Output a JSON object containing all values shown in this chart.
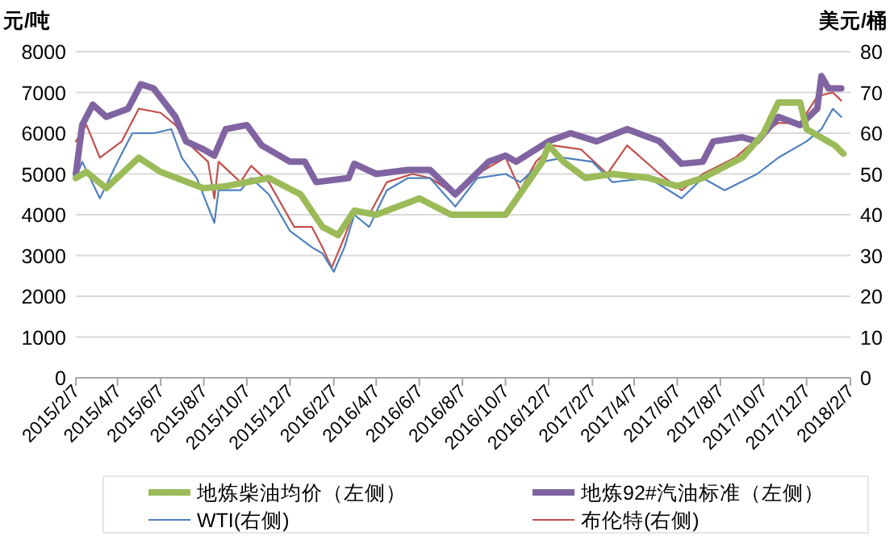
{
  "chart_data": {
    "type": "line",
    "ylabel": "元/吨",
    "y2label": "美元/桶",
    "xlim": [
      "2015-02-07",
      "2018-02-07"
    ],
    "xticks": [
      {
        "value": "2015-02-07",
        "label": "2015/2/7"
      },
      {
        "value": "2015-04-07",
        "label": "2015/4/7"
      },
      {
        "value": "2015-06-07",
        "label": "2015/6/7"
      },
      {
        "value": "2015-08-07",
        "label": "2015/8/7"
      },
      {
        "value": "2015-10-07",
        "label": "2015/10/7"
      },
      {
        "value": "2015-12-07",
        "label": "2015/12/7"
      },
      {
        "value": "2016-02-07",
        "label": "2016/2/7"
      },
      {
        "value": "2016-04-07",
        "label": "2016/4/7"
      },
      {
        "value": "2016-06-07",
        "label": "2016/6/7"
      },
      {
        "value": "2016-08-07",
        "label": "2016/8/7"
      },
      {
        "value": "2016-10-07",
        "label": "2016/10/7"
      },
      {
        "value": "2016-12-07",
        "label": "2016/12/7"
      },
      {
        "value": "2017-02-07",
        "label": "2017/2/7"
      },
      {
        "value": "2017-04-07",
        "label": "2017/4/7"
      },
      {
        "value": "2017-06-07",
        "label": "2017/6/7"
      },
      {
        "value": "2017-08-07",
        "label": "2017/8/7"
      },
      {
        "value": "2017-10-07",
        "label": "2017/10/7"
      },
      {
        "value": "2017-12-07",
        "label": "2017/12/7"
      },
      {
        "value": "2018-02-07",
        "label": "2018/2/7"
      }
    ],
    "ylim": [
      0,
      8000
    ],
    "yticks": [
      0,
      1000,
      2000,
      3000,
      4000,
      5000,
      6000,
      7000,
      8000
    ],
    "y2lim": [
      0,
      80
    ],
    "y2ticks": [
      0,
      10,
      20,
      30,
      40,
      50,
      60,
      70,
      80
    ],
    "grid": "y",
    "legend": "bottom",
    "series": [
      {
        "name": "地炼柴油均价（左侧）",
        "color": "#9bbb59",
        "x": [
          "2015-02-07",
          "2015-02-22",
          "2015-03-22",
          "2015-05-07",
          "2015-06-07",
          "2015-08-07",
          "2015-09-07",
          "2015-11-07",
          "2015-12-22",
          "2016-01-22",
          "2016-02-13",
          "2016-03-07",
          "2016-04-07",
          "2016-06-07",
          "2016-07-22",
          "2016-10-07",
          "2016-11-28",
          "2016-12-07",
          "2016-12-28",
          "2017-01-28",
          "2017-03-07",
          "2017-04-28",
          "2017-06-07",
          "2017-07-13",
          "2017-09-07",
          "2017-10-07",
          "2017-10-28",
          "2017-11-28",
          "2017-12-07",
          "2018-01-16",
          "2018-01-28"
        ],
        "values": [
          4900,
          5050,
          4650,
          5400,
          5050,
          4650,
          4700,
          4900,
          4500,
          3700,
          3500,
          4100,
          4000,
          4400,
          4000,
          4000,
          5300,
          5700,
          5300,
          4900,
          5000,
          4900,
          4700,
          4900,
          5400,
          6000,
          6750,
          6750,
          6100,
          5700,
          5500
        ]
      },
      {
        "name": "地炼92#汽油标准（左侧）",
        "color": "#8064a2",
        "x": [
          "2015-02-07",
          "2015-02-16",
          "2015-03-03",
          "2015-03-22",
          "2015-04-22",
          "2015-05-10",
          "2015-05-28",
          "2015-06-28",
          "2015-07-13",
          "2015-08-07",
          "2015-08-22",
          "2015-09-07",
          "2015-10-07",
          "2015-10-28",
          "2015-12-07",
          "2015-12-28",
          "2016-01-13",
          "2016-02-28",
          "2016-03-07",
          "2016-04-07",
          "2016-05-22",
          "2016-06-22",
          "2016-07-28",
          "2016-09-13",
          "2016-10-07",
          "2016-10-22",
          "2016-12-07",
          "2017-01-07",
          "2017-02-13",
          "2017-03-28",
          "2017-05-13",
          "2017-06-13",
          "2017-07-13",
          "2017-07-28",
          "2017-09-07",
          "2017-09-28",
          "2017-10-28",
          "2017-11-28",
          "2017-12-22",
          "2017-12-28",
          "2018-01-07",
          "2018-01-25"
        ],
        "values": [
          5000,
          6200,
          6700,
          6400,
          6600,
          7200,
          7100,
          6400,
          5800,
          5600,
          5450,
          6100,
          6200,
          5700,
          5300,
          5300,
          4800,
          4900,
          5250,
          5000,
          5100,
          5100,
          4500,
          5300,
          5450,
          5300,
          5800,
          6000,
          5800,
          6100,
          5800,
          5250,
          5300,
          5800,
          5900,
          5800,
          6400,
          6200,
          6600,
          7400,
          7100,
          7100
        ]
      },
      {
        "name": "WTI(右侧)",
        "color": "#4f81bd",
        "axis": "y2",
        "x": [
          "2015-02-07",
          "2015-02-16",
          "2015-03-13",
          "2015-04-07",
          "2015-04-28",
          "2015-05-28",
          "2015-06-22",
          "2015-07-07",
          "2015-07-28",
          "2015-08-22",
          "2015-08-28",
          "2015-09-28",
          "2015-10-13",
          "2015-11-07",
          "2015-12-07",
          "2016-01-07",
          "2016-01-22",
          "2016-02-07",
          "2016-02-22",
          "2016-03-07",
          "2016-03-28",
          "2016-04-22",
          "2016-05-22",
          "2016-06-22",
          "2016-07-28",
          "2016-08-28",
          "2016-10-07",
          "2016-10-28",
          "2016-11-28",
          "2016-12-28",
          "2017-02-07",
          "2017-03-07",
          "2017-04-28",
          "2017-06-13",
          "2017-07-13",
          "2017-08-13",
          "2017-09-28",
          "2017-10-28",
          "2017-12-07",
          "2017-12-28",
          "2018-01-13",
          "2018-01-25"
        ],
        "values": [
          49,
          53,
          44,
          53,
          60,
          60,
          61,
          54,
          49,
          38,
          46,
          46,
          49,
          45,
          36,
          32,
          30.5,
          26,
          32,
          40,
          37,
          46,
          49,
          49,
          42,
          49,
          50,
          48,
          53,
          54,
          53,
          48,
          49,
          44,
          49,
          46,
          50,
          54,
          58,
          61,
          66,
          64
        ]
      },
      {
        "name": "布伦特(右侧)",
        "color": "#c0504d",
        "axis": "y2",
        "x": [
          "2015-02-07",
          "2015-02-22",
          "2015-03-13",
          "2015-04-13",
          "2015-05-07",
          "2015-06-07",
          "2015-06-28",
          "2015-07-13",
          "2015-08-13",
          "2015-08-22",
          "2015-08-28",
          "2015-09-28",
          "2015-10-13",
          "2015-11-07",
          "2015-12-13",
          "2016-01-07",
          "2016-01-22",
          "2016-02-04",
          "2016-02-22",
          "2016-03-07",
          "2016-03-28",
          "2016-04-22",
          "2016-05-28",
          "2016-06-22",
          "2016-07-28",
          "2016-08-28",
          "2016-10-07",
          "2016-10-28",
          "2016-11-19",
          "2016-12-13",
          "2017-01-22",
          "2017-02-28",
          "2017-03-28",
          "2017-05-13",
          "2017-06-13",
          "2017-07-13",
          "2017-08-28",
          "2017-10-07",
          "2017-10-28",
          "2017-11-28",
          "2017-12-22",
          "2018-01-13",
          "2018-01-25"
        ],
        "values": [
          58,
          62,
          54,
          58,
          66,
          65,
          62,
          58,
          53,
          44,
          53,
          48,
          52,
          48,
          37,
          37,
          32,
          27,
          34.5,
          41,
          40,
          48,
          50,
          49,
          45,
          50,
          54,
          46,
          53,
          57,
          56,
          50,
          57,
          50,
          46,
          50,
          54,
          60,
          62.5,
          62.5,
          69,
          70,
          68
        ]
      }
    ]
  }
}
